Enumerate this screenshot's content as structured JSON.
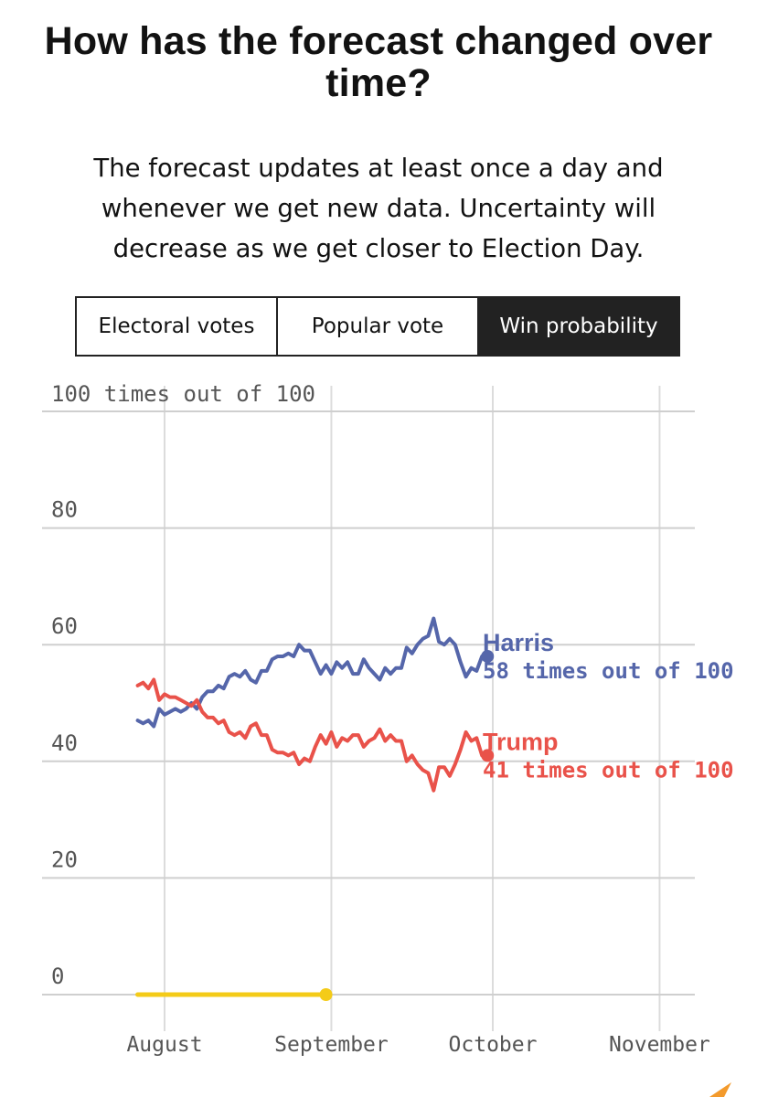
{
  "title": "How has the forecast changed over time?",
  "subtitle": "The forecast updates at least once a day and whenever we get new data. Uncertainty will decrease as we get closer to Election Day.",
  "tabs": [
    {
      "label": "Electoral votes",
      "active": false
    },
    {
      "label": "Popular vote",
      "active": false
    },
    {
      "label": "Win probability",
      "active": true
    }
  ],
  "chart_data": {
    "type": "line",
    "y_axis_top_label": "100 times out of 100",
    "y_ticks": [
      "80",
      "60",
      "40",
      "20",
      "0"
    ],
    "ylim": [
      0,
      100
    ],
    "x_ticks": [
      {
        "label": "August",
        "date": "2024-08-01"
      },
      {
        "label": "September",
        "date": "2024-09-01"
      },
      {
        "label": "October",
        "date": "2024-10-01"
      },
      {
        "label": "November",
        "date": "2024-11-01"
      }
    ],
    "x": [
      "2024-07-27",
      "2024-07-28",
      "2024-07-29",
      "2024-07-30",
      "2024-07-31",
      "2024-08-01",
      "2024-08-02",
      "2024-08-03",
      "2024-08-04",
      "2024-08-05",
      "2024-08-06",
      "2024-08-07",
      "2024-08-08",
      "2024-08-09",
      "2024-08-10",
      "2024-08-11",
      "2024-08-12",
      "2024-08-13",
      "2024-08-14",
      "2024-08-15",
      "2024-08-16",
      "2024-08-17",
      "2024-08-18",
      "2024-08-19",
      "2024-08-20",
      "2024-08-21",
      "2024-08-22",
      "2024-08-23",
      "2024-08-24",
      "2024-08-25",
      "2024-08-26",
      "2024-08-27",
      "2024-08-28",
      "2024-08-29",
      "2024-08-30",
      "2024-08-31",
      "2024-09-01",
      "2024-09-02",
      "2024-09-03",
      "2024-09-04",
      "2024-09-05",
      "2024-09-06",
      "2024-09-07",
      "2024-09-08",
      "2024-09-09",
      "2024-09-10",
      "2024-09-11",
      "2024-09-12",
      "2024-09-13",
      "2024-09-14",
      "2024-09-15",
      "2024-09-16",
      "2024-09-17",
      "2024-09-18",
      "2024-09-19",
      "2024-09-20",
      "2024-09-21",
      "2024-09-22",
      "2024-09-23",
      "2024-09-24",
      "2024-09-25",
      "2024-09-26",
      "2024-09-27",
      "2024-09-28",
      "2024-09-29"
    ],
    "series": [
      {
        "name": "Harris",
        "label": "58 times out of 100",
        "color": "#5566aa",
        "values": [
          47,
          46.5,
          47,
          46,
          49,
          48,
          48.5,
          49,
          48.5,
          49,
          50,
          49,
          51,
          52,
          52,
          53,
          52.5,
          54.5,
          55,
          54.5,
          55.5,
          54,
          53.5,
          55.5,
          55.5,
          57.5,
          58,
          58,
          58.5,
          58,
          60,
          59,
          59,
          57,
          55,
          56.5,
          55,
          57,
          56,
          57,
          55,
          55,
          57.5,
          56,
          55,
          54,
          56,
          55,
          56,
          56,
          59.5,
          58.5,
          60,
          61,
          61.5,
          64.5,
          60.5,
          60,
          61,
          60,
          57,
          54.5,
          56,
          55.5,
          58
        ]
      },
      {
        "name": "Trump",
        "label": "41 times out of 100",
        "color": "#e9524a",
        "values": [
          53,
          53.5,
          52.5,
          54,
          50.5,
          51.5,
          51,
          51,
          50.5,
          50,
          49.5,
          50.5,
          48.5,
          47.5,
          47.5,
          46.5,
          47,
          45,
          44.5,
          45,
          44,
          46,
          46.5,
          44.5,
          44.5,
          42,
          41.5,
          41.5,
          41,
          41.5,
          39.5,
          40.5,
          40,
          42.5,
          44.5,
          43,
          45,
          42.5,
          44,
          43.5,
          44.5,
          44.5,
          42.5,
          43.5,
          44,
          45.5,
          43.5,
          44.5,
          43.5,
          43.5,
          40,
          41,
          39.5,
          38.5,
          38,
          35,
          39,
          39,
          37.5,
          39.5,
          42,
          45,
          43.5,
          44,
          41
        ]
      }
    ],
    "selection_bar": {
      "start": "2024-07-27",
      "end": "2024-08-31",
      "color": "#f4cb18"
    }
  }
}
